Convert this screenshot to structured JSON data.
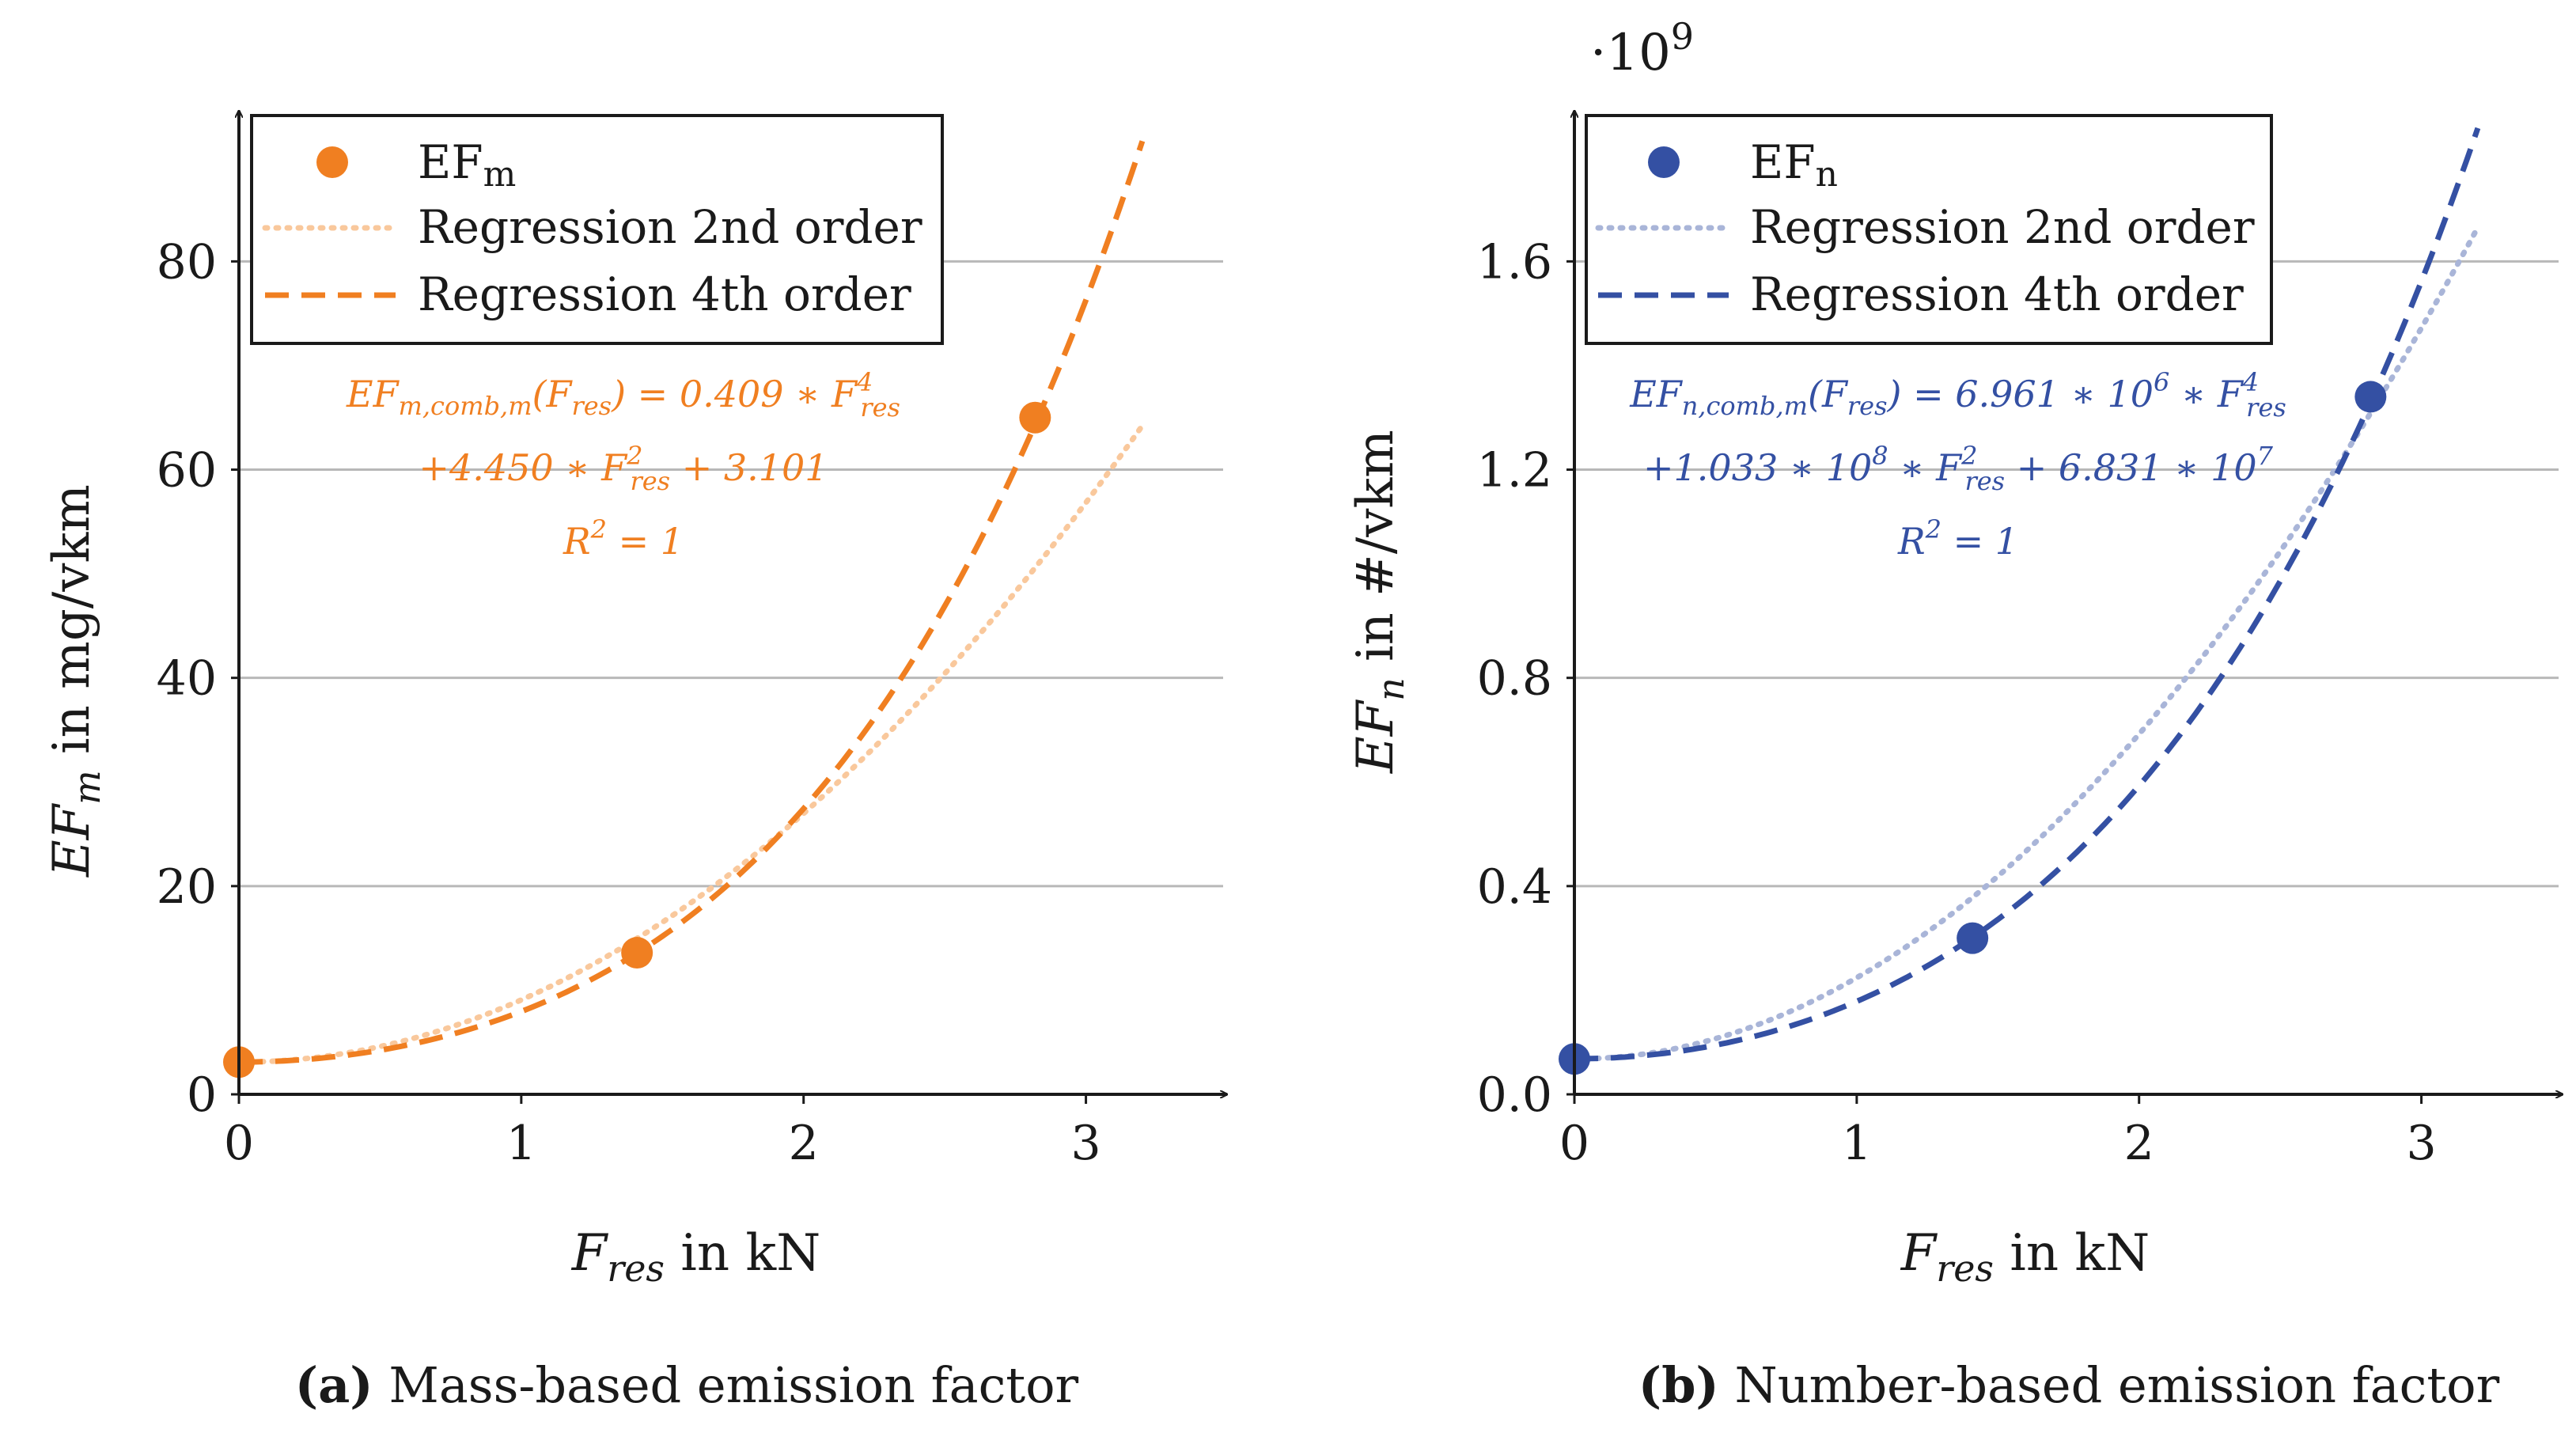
{
  "colors": {
    "orange": "#f07f21",
    "orange_light": "#f9c89c",
    "blue": "#3450a3",
    "blue_light": "#a9b5d8",
    "grid": "#b8b8b8",
    "axis": "#1a1a1a"
  },
  "chart_data": [
    {
      "type": "line",
      "xlabel": "F_res in kN",
      "ylabel": "EF_m in mg/vkm",
      "caption_label": "(a)",
      "caption_text": "Mass-based emission factor",
      "xlim": [
        0,
        3.5
      ],
      "ylim": [
        0,
        95
      ],
      "xticks": [
        "0",
        "1",
        "2",
        "3"
      ],
      "yticks": [
        "0",
        "20",
        "40",
        "60",
        "80"
      ],
      "grid": "horizontal",
      "legend_position": "top-left",
      "legend": [
        "EFm",
        "Regression 2nd order",
        "Regression 4th order"
      ],
      "points": {
        "x": [
          0,
          1.41,
          2.82
        ],
        "y": [
          3.1,
          13.6,
          65.0
        ]
      },
      "reg2": {
        "x0": 0,
        "x1": 3.2,
        "f": "3.1 + 5.97*x^2"
      },
      "reg4": {
        "x0": 0,
        "x1": 3.2,
        "f": "3.101 + 4.450*x^2 + 0.409*x^4"
      },
      "equation": [
        "EFm,comb,m(Fres) = 0.409 ∗ F⁴res",
        "+4.450 ∗ F²res + 3.101",
        "R² = 1"
      ]
    },
    {
      "type": "line",
      "xlabel": "F_res in kN",
      "ylabel": "EF_n in #/vkm",
      "scale_note": "·10⁹",
      "caption_label": "(b)",
      "caption_text": "Number-based emission factor",
      "xlim": [
        0,
        3.5
      ],
      "ylim": [
        0,
        1.9
      ],
      "xticks": [
        "0",
        "1",
        "2",
        "3"
      ],
      "yticks": [
        "0.0",
        "0.4",
        "0.8",
        "1.2",
        "1.6"
      ],
      "grid": "horizontal",
      "legend_position": "top-left",
      "legend": [
        "EFn",
        "Regression 2nd order",
        "Regression 4th order"
      ],
      "points": {
        "x": [
          0,
          1.41,
          2.82
        ],
        "y": [
          0.068,
          0.3,
          1.34
        ]
      },
      "reg2": {
        "x0": 0,
        "x1": 3.2,
        "f": "0.068 + 0.156*x^2"
      },
      "reg4": {
        "x0": 0,
        "x1": 3.2,
        "f": "0.06831 + 0.1033*x^2 + 0.006961*x^4"
      },
      "equation": [
        "EFn,comb,m(Fres) = 6.961 ∗ 10⁶ ∗ F⁴res",
        "+1.033 ∗ 10⁸ ∗ F²res + 6.831 ∗ 10⁷",
        "R² = 1"
      ]
    }
  ]
}
